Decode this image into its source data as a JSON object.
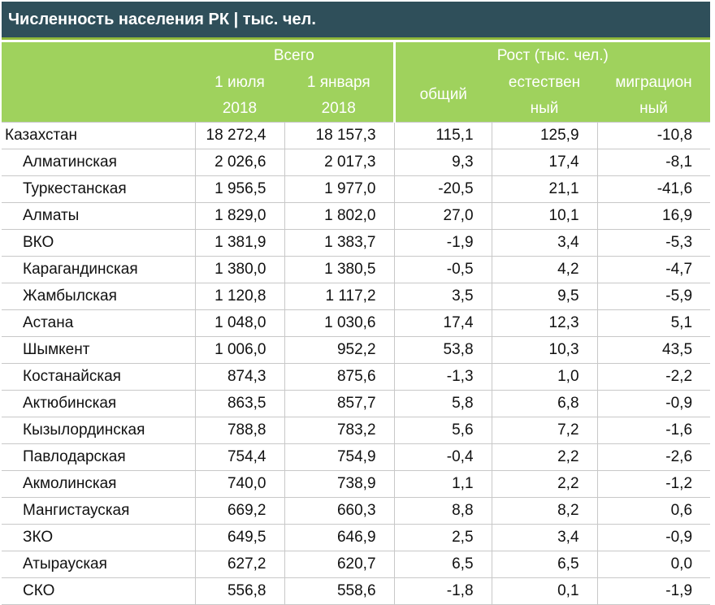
{
  "title": "Численность населения РК | тыс. чел.",
  "header": {
    "group_total": "Всего",
    "group_growth": "Рост (тыс. чел.)",
    "col_jul_1": "1 июля",
    "col_jul_2": "2018",
    "col_jan_1": "1 января",
    "col_jan_2": "2018",
    "col_general": "общий",
    "col_natural_1": "естествен",
    "col_natural_2": "ный",
    "col_migration_1": "миграцион",
    "col_migration_2": "ный"
  },
  "rows": [
    {
      "name": "Казахстан",
      "jul": "18 272,4",
      "jan": "18 157,3",
      "general": "115,1",
      "natural": "125,9",
      "migration": "-10,8"
    },
    {
      "name": "Алматинская",
      "jul": "2 026,6",
      "jan": "2 017,3",
      "general": "9,3",
      "natural": "17,4",
      "migration": "-8,1"
    },
    {
      "name": "Туркестанская",
      "jul": "1 956,5",
      "jan": "1 977,0",
      "general": "-20,5",
      "natural": "21,1",
      "migration": "-41,6"
    },
    {
      "name": "Алматы",
      "jul": "1 829,0",
      "jan": "1 802,0",
      "general": "27,0",
      "natural": "10,1",
      "migration": "16,9"
    },
    {
      "name": "ВКО",
      "jul": "1 381,9",
      "jan": "1 383,7",
      "general": "-1,9",
      "natural": "3,4",
      "migration": "-5,3"
    },
    {
      "name": "Карагандинская",
      "jul": "1 380,0",
      "jan": "1 380,5",
      "general": "-0,5",
      "natural": "4,2",
      "migration": "-4,7"
    },
    {
      "name": "Жамбылская",
      "jul": "1 120,8",
      "jan": "1 117,2",
      "general": "3,5",
      "natural": "9,5",
      "migration": "-5,9"
    },
    {
      "name": "Астана",
      "jul": "1 048,0",
      "jan": "1 030,6",
      "general": "17,4",
      "natural": "12,3",
      "migration": "5,1"
    },
    {
      "name": "Шымкент",
      "jul": "1 006,0",
      "jan": "952,2",
      "general": "53,8",
      "natural": "10,3",
      "migration": "43,5"
    },
    {
      "name": "Костанайская",
      "jul": "874,3",
      "jan": "875,6",
      "general": "-1,3",
      "natural": "1,0",
      "migration": "-2,2"
    },
    {
      "name": "Актюбинская",
      "jul": "863,5",
      "jan": "857,7",
      "general": "5,8",
      "natural": "6,8",
      "migration": "-0,9"
    },
    {
      "name": "Кызылординская",
      "jul": "788,8",
      "jan": "783,2",
      "general": "5,6",
      "natural": "7,2",
      "migration": "-1,6"
    },
    {
      "name": "Павлодарская",
      "jul": "754,4",
      "jan": "754,9",
      "general": "-0,4",
      "natural": "2,2",
      "migration": "-2,6"
    },
    {
      "name": "Акмолинская",
      "jul": "740,0",
      "jan": "738,9",
      "general": "1,1",
      "natural": "2,2",
      "migration": "-1,2"
    },
    {
      "name": "Мангистауская",
      "jul": "669,2",
      "jan": "660,3",
      "general": "8,8",
      "natural": "8,2",
      "migration": "0,6"
    },
    {
      "name": "ЗКО",
      "jul": "649,5",
      "jan": "646,9",
      "general": "2,5",
      "natural": "3,4",
      "migration": "-0,9"
    },
    {
      "name": "Атырауская",
      "jul": "627,2",
      "jan": "620,7",
      "general": "6,5",
      "natural": "6,5",
      "migration": "0,0"
    },
    {
      "name": "СКО",
      "jul": "556,8",
      "jan": "558,6",
      "general": "-1,8",
      "natural": "0,1",
      "migration": "-1,9"
    }
  ],
  "colors": {
    "title_bg": "#2f4f5a",
    "header_bg": "#9fd25d",
    "accent_line": "#8fb83a"
  }
}
